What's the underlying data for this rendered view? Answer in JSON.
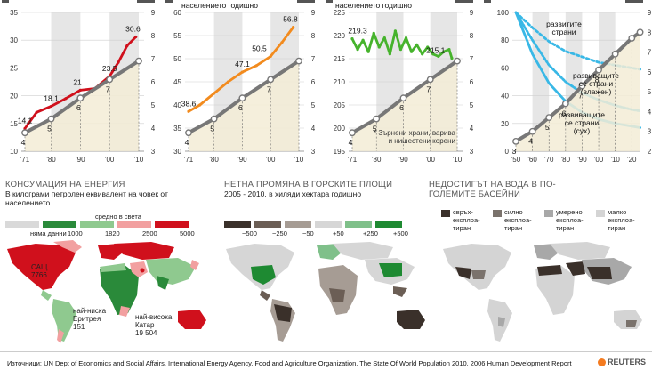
{
  "header_notes": {
    "orange": "населението годишно",
    "green": "населението годишно"
  },
  "colors": {
    "red": "#d0101c",
    "orange": "#f28b1e",
    "green": "#46b32c",
    "cyan": "#39b8e6",
    "grey": "#777777",
    "band": "#e6e6e6",
    "fill": "#f3ecd6"
  },
  "chart_data": [
    {
      "type": "line",
      "x_ticks": [
        "'71",
        "'80",
        "'90",
        "'00",
        "'10"
      ],
      "left_axis": {
        "ticks": [
          10,
          15,
          20,
          25,
          30,
          35
        ],
        "ylim": [
          10,
          35
        ]
      },
      "right_axis": {
        "ticks": [
          3,
          4,
          5,
          6,
          7,
          8,
          9
        ],
        "ylim": [
          3,
          9
        ]
      },
      "series": [
        {
          "color": "red",
          "x": [
            1971,
            1975,
            1980,
            1985,
            1990,
            1995,
            2000,
            2003,
            2006,
            2009
          ],
          "values": [
            14.1,
            17.0,
            18.1,
            19.5,
            21,
            21.3,
            23.5,
            26,
            29,
            30.6
          ]
        },
        {
          "color": "grey",
          "x": [
            1971,
            1980,
            1990,
            2000,
            2010
          ],
          "values": [
            3.8,
            4.4,
            5.3,
            6.1,
            6.9
          ]
        }
      ],
      "data_labels": [
        {
          "x": 1971,
          "y": 14.1,
          "text": "14.1"
        },
        {
          "x": 1980,
          "y": 18.1,
          "text": "18.1"
        },
        {
          "x": 1989,
          "y": 21,
          "text": "21"
        },
        {
          "x": 2000,
          "y": 23.5,
          "text": "23.5"
        },
        {
          "x": 2008,
          "y": 30.6,
          "text": "30.6"
        }
      ],
      "grey_labels": [
        "4",
        "5",
        "6",
        "7"
      ]
    },
    {
      "type": "line",
      "x_ticks": [
        "'71",
        "'80",
        "'90",
        "'00",
        "'10"
      ],
      "left_axis": {
        "ticks": [
          30,
          35,
          40,
          45,
          50,
          55,
          60
        ],
        "ylim": [
          30,
          60
        ]
      },
      "right_axis": {
        "ticks": [
          3,
          4,
          5,
          6,
          7,
          8,
          9
        ],
        "ylim": [
          3,
          9
        ]
      },
      "series": [
        {
          "color": "orange",
          "x": [
            1971,
            1975,
            1980,
            1985,
            1990,
            1995,
            2000,
            2004,
            2008
          ],
          "values": [
            38.6,
            40,
            42.5,
            45,
            47.1,
            48.5,
            50.5,
            53.5,
            56.8
          ]
        },
        {
          "color": "grey",
          "x": [
            1971,
            1980,
            1990,
            2000,
            2010
          ],
          "values": [
            3.8,
            4.4,
            5.3,
            6.1,
            6.9
          ]
        }
      ],
      "data_labels": [
        {
          "x": 1971,
          "y": 38.6,
          "text": "38.6"
        },
        {
          "x": 1990,
          "y": 47.1,
          "text": "47.1"
        },
        {
          "x": 1996,
          "y": 50.5,
          "text": "50.5"
        },
        {
          "x": 2007,
          "y": 56.8,
          "text": "56.8"
        }
      ],
      "grey_labels": [
        "4",
        "5",
        "6",
        "7"
      ]
    },
    {
      "type": "line",
      "x_ticks": [
        "'71",
        "'80",
        "'90",
        "'00",
        "'10"
      ],
      "left_axis": {
        "ticks": [
          195,
          200,
          205,
          210,
          215,
          220,
          225
        ],
        "ylim": [
          195,
          225
        ]
      },
      "right_axis": {
        "ticks": [
          3,
          4,
          5,
          6,
          7,
          8,
          9
        ],
        "ylim": [
          3,
          9
        ]
      },
      "note": "* Зърнени храни, варива и нишестени корени",
      "series": [
        {
          "color": "green",
          "x": [
            1971,
            1973,
            1975,
            1977,
            1979,
            1981,
            1983,
            1985,
            1987,
            1989,
            1991,
            1993,
            1995,
            1997,
            1999,
            2001,
            2003,
            2005,
            2007,
            2008
          ],
          "values": [
            219.3,
            217,
            219,
            216.5,
            220.5,
            217.5,
            219.5,
            216,
            221,
            217,
            219.5,
            216.5,
            218,
            216,
            217.5,
            216,
            215.5,
            216.5,
            217,
            215.1
          ]
        },
        {
          "color": "grey",
          "x": [
            1971,
            1980,
            1990,
            2000,
            2010
          ],
          "values": [
            3.8,
            4.4,
            5.3,
            6.1,
            6.9
          ]
        }
      ],
      "data_labels": [
        {
          "x": 1973,
          "y": 219.3,
          "text": "219.3"
        },
        {
          "x": 2002,
          "y": 215.1,
          "text": "215.1"
        }
      ],
      "grey_labels": [
        "4",
        "5",
        "6",
        "7"
      ]
    },
    {
      "type": "line",
      "x_ticks": [
        "'50",
        "'60",
        "'70",
        "'80",
        "'90",
        "'00",
        "'10",
        "'20"
      ],
      "left_axis": {
        "ticks": [
          0,
          20,
          40,
          60,
          80,
          100
        ],
        "ylim": [
          0,
          100
        ]
      },
      "right_axis": {
        "ticks": [
          2,
          3,
          4,
          5,
          6,
          7,
          8,
          9
        ],
        "ylim": [
          2,
          9
        ]
      },
      "series": [
        {
          "name": "развитите страни",
          "color": "cyan",
          "x": [
            1950,
            1960,
            1970,
            1980,
            1990,
            2000,
            2010,
            2020,
            2025
          ],
          "values": [
            100,
            89,
            79,
            72,
            68,
            64,
            62,
            60,
            59
          ]
        },
        {
          "name": "развиващите се страни (влажен)",
          "color": "cyan",
          "x": [
            1950,
            1960,
            1970,
            1980,
            1990,
            2000,
            2010,
            2020,
            2025
          ],
          "values": [
            100,
            80,
            62,
            50,
            42,
            37,
            33,
            30,
            29
          ]
        },
        {
          "name": "развиващите се страни (сух)",
          "color": "cyan",
          "x": [
            1950,
            1960,
            1970,
            1980,
            1990,
            2000,
            2010,
            2020,
            2025
          ],
          "values": [
            100,
            70,
            49,
            36,
            28,
            23,
            20,
            18,
            17
          ]
        },
        {
          "color": "grey",
          "x": [
            1950,
            1960,
            1970,
            1980,
            1990,
            2000,
            2010,
            2020,
            2025
          ],
          "values": [
            2.5,
            3.0,
            3.7,
            4.4,
            5.3,
            6.1,
            6.9,
            7.7,
            8.0
          ]
        }
      ],
      "grey_labels": [
        "3",
        "4",
        "5",
        "6",
        "7",
        "8"
      ]
    }
  ],
  "sections": {
    "energy": {
      "title": "КОНСУМАЦИЯ НА ЕНЕРГИЯ",
      "subtitle": "В килограми петролен еквивалент на човек от населението",
      "avg_label": "средно в света",
      "legend": [
        {
          "label": "няма данни",
          "color": "#d9d9d9"
        },
        {
          "label": "1000",
          "color": "#2a8a3a"
        },
        {
          "label": "1820",
          "color": "#8fc98f"
        },
        {
          "label": "2500",
          "color": "#f2a0a0"
        },
        {
          "label": "5000",
          "color": "#d0101c"
        }
      ],
      "annotations": [
        {
          "text": "САЩ\n7766"
        },
        {
          "text": "най-ниска\nЕритрея\n151"
        },
        {
          "text": "най-висока\nКатар\n19 504"
        }
      ]
    },
    "forest": {
      "title": "НЕТНА ПРОМЯНА В ГОРСКИТЕ ПЛОЩИ",
      "subtitle": "2005 - 2010, в хиляди хектара годишно",
      "legend": [
        {
          "label": "−500",
          "color": "#3a302a"
        },
        {
          "label": "−250",
          "color": "#6b5e55"
        },
        {
          "label": "−50",
          "color": "#a69c94"
        },
        {
          "label": "+50",
          "color": "#d6d6d6"
        },
        {
          "label": "+250",
          "color": "#7fc08a"
        },
        {
          "label": "+500",
          "color": "#1e8a32"
        }
      ]
    },
    "water": {
      "title": "НЕДОСТИГЪТ НА ВОДА В ПО-ГОЛЕМИТЕ БАСЕЙНИ",
      "legend": [
        {
          "label": "свръх-\nексплоа-\nтиран",
          "color": "#3a302a"
        },
        {
          "label": "силно\nексплоа-\nтиран",
          "color": "#7a726c"
        },
        {
          "label": "умерено\nексплоа-\nтиран",
          "color": "#a8a8a8"
        },
        {
          "label": "малко\nексплоа-\nтиран",
          "color": "#d4d4d4"
        }
      ]
    }
  },
  "source": "Източници: UN Dept of Economics and Social Affairs, International Energy Agency, Food and Agriculture Organization, The State Of World Population 2010, 2006 Human Development Report",
  "brand": "REUTERS"
}
